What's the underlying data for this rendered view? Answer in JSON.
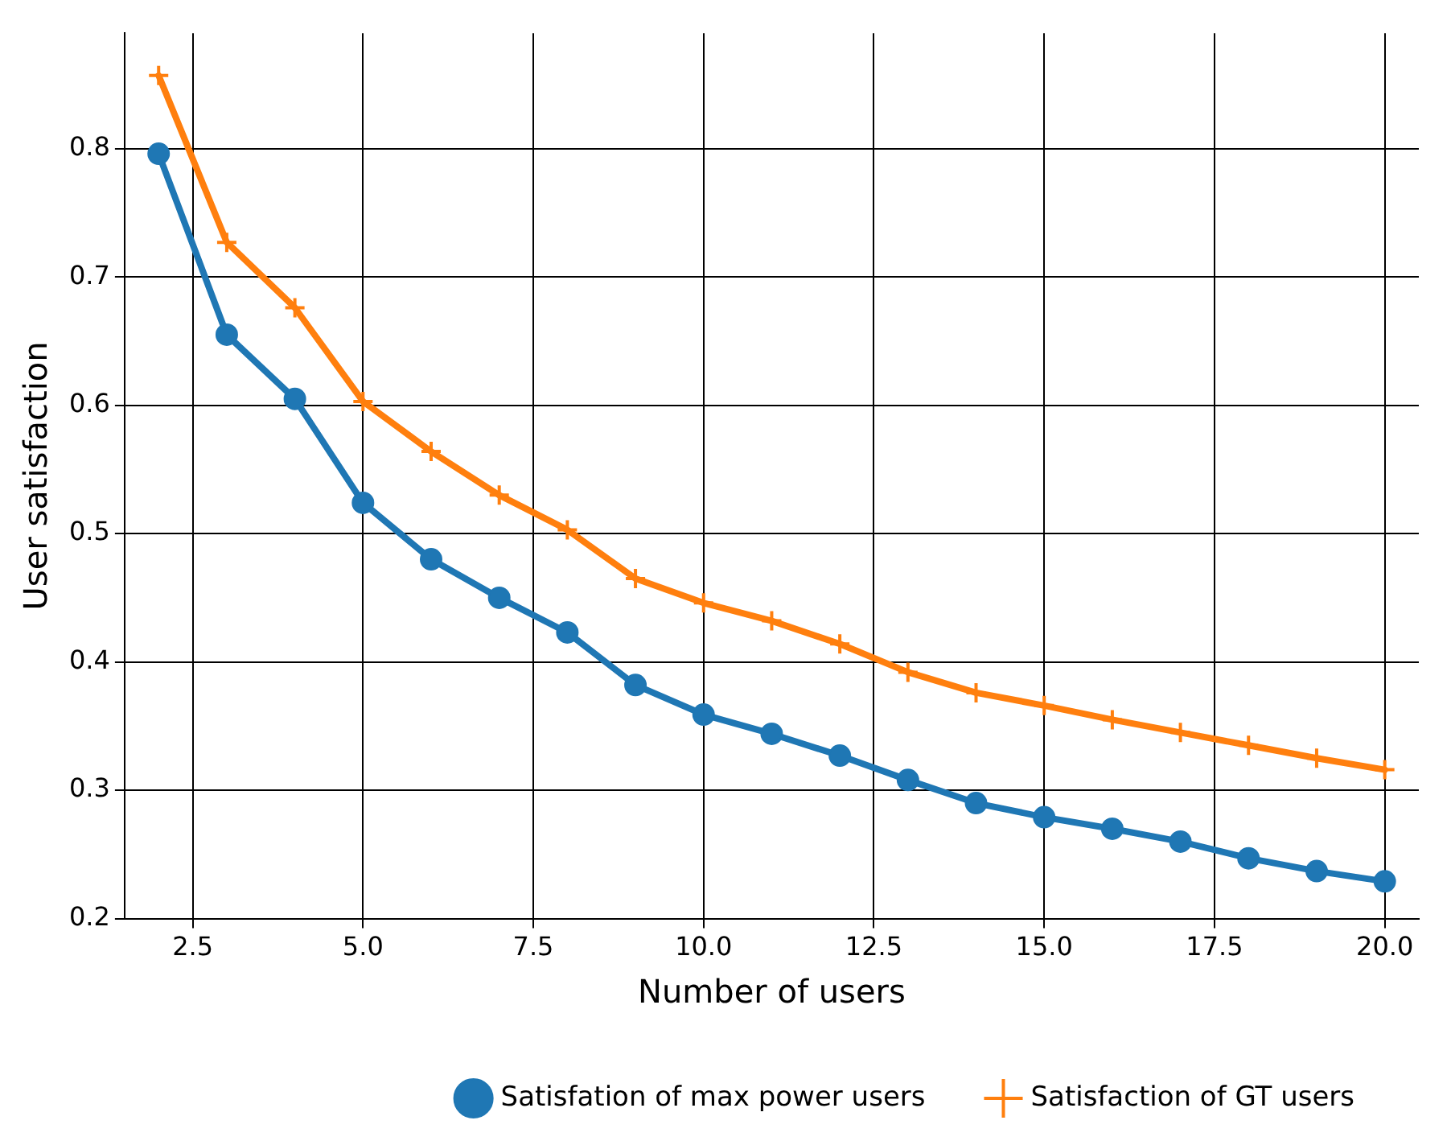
{
  "chart_data": {
    "type": "line",
    "xlabel": "Number of users",
    "ylabel": "User satisfaction",
    "x": [
      2,
      3,
      4,
      5,
      6,
      7,
      8,
      9,
      10,
      11,
      12,
      13,
      14,
      15,
      16,
      17,
      18,
      19,
      20
    ],
    "xlim": [
      1.5,
      20.5
    ],
    "xticks": [
      {
        "value": 2.5,
        "label": "2.5"
      },
      {
        "value": 5,
        "label": "5.0"
      },
      {
        "value": 7.5,
        "label": "7.5"
      },
      {
        "value": 10,
        "label": "10.0"
      },
      {
        "value": 12.5,
        "label": "12.5"
      },
      {
        "value": 15,
        "label": "15.0"
      },
      {
        "value": 17.5,
        "label": "17.5"
      },
      {
        "value": 20,
        "label": "20.0"
      }
    ],
    "ylim": [
      0.2,
      0.89
    ],
    "yticks": [
      0.2,
      0.3,
      0.4,
      0.5,
      0.6,
      0.7,
      0.8
    ],
    "grid": true,
    "legend": "bottom",
    "line_style": "solid",
    "series": [
      {
        "name": "Satisfation of max power users",
        "color": "#1f77b4",
        "marker": "circle",
        "values": [
          0.796,
          0.655,
          0.605,
          0.524,
          0.48,
          0.45,
          0.423,
          0.382,
          0.359,
          0.344,
          0.327,
          0.308,
          0.29,
          0.279,
          0.27,
          0.26,
          0.247,
          0.237,
          0.229
        ]
      },
      {
        "name": "Satisfaction of GT users",
        "color": "#ff7f0e",
        "marker": "cross",
        "values": [
          0.857,
          0.727,
          0.676,
          0.603,
          0.564,
          0.53,
          0.503,
          0.465,
          0.446,
          0.432,
          0.414,
          0.392,
          0.376,
          0.366,
          0.355,
          0.345,
          0.335,
          0.325,
          0.316
        ]
      }
    ]
  }
}
